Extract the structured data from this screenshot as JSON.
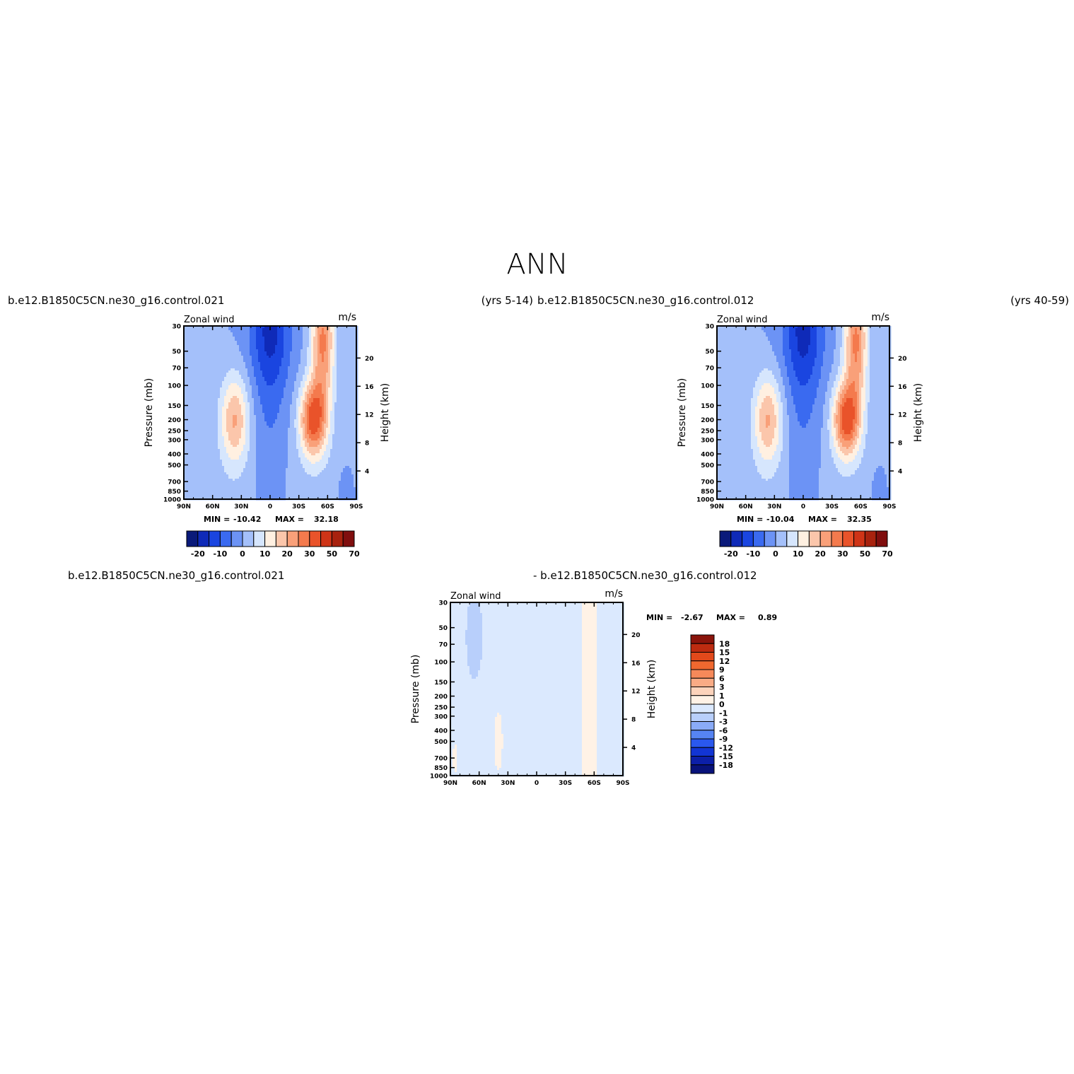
{
  "page": {
    "title": "ANN",
    "top_left_case": "b.e12.B1850C5CN.ne30_g16.control.021",
    "top_left_years": "(yrs 5-14)",
    "top_right_case": "b.e12.B1850C5CN.ne30_g16.control.012",
    "top_right_years": "(yrs 40-59)",
    "diff_case_a": "b.e12.B1850C5CN.ne30_g16.control.021",
    "diff_case_b": "- b.e12.B1850C5CN.ne30_g16.control.012"
  },
  "colors": {
    "model_scale": [
      "#0a1a7a",
      "#0f2ab8",
      "#1a45e0",
      "#3a6af0",
      "#6c93f5",
      "#a4c0fa",
      "#d6e6fd",
      "#fff0e1",
      "#fbc6ab",
      "#f9a079",
      "#f47a4d",
      "#e9532a",
      "#cf3417",
      "#a8220e",
      "#800e0e"
    ],
    "diff_scale": [
      "#08127a",
      "#0c1fa8",
      "#1235d4",
      "#2a58ee",
      "#5684f3",
      "#8aabf7",
      "#b8cffb",
      "#dbe9fe",
      "#fff2e6",
      "#fcd3bb",
      "#f9ab85",
      "#f6895a",
      "#f0682f",
      "#e2491b",
      "#bd2b10",
      "#8a140b"
    ]
  },
  "chart_data": [
    {
      "type": "heatmap",
      "panel": "top-left",
      "variable": "Zonal wind",
      "units": "m/s",
      "ylabel": "Pressure (mb)",
      "ylabel_right": "Height (km)",
      "x_ticks": [
        "90N",
        "60N",
        "30N",
        "0",
        "30S",
        "60S",
        "90S"
      ],
      "y_ticks": [
        "30",
        "50",
        "70",
        "100",
        "150",
        "200",
        "250",
        "300",
        "400",
        "500",
        "700",
        "850",
        "1000"
      ],
      "height_ticks": [
        "20",
        "16",
        "12",
        "8",
        "4"
      ],
      "min_label": "MIN =",
      "min_value": "-10.42",
      "max_label": "MAX =",
      "max_value": "32.18",
      "ylim_mb": [
        1000,
        30
      ],
      "xlim_deg": [
        90,
        -90
      ],
      "colorbar_labels": [
        "-20",
        "-10",
        "0",
        "10",
        "20",
        "30",
        "50",
        "70"
      ],
      "colorbar_orientation": "horizontal-below",
      "jets": {
        "nh_max_ms": 20,
        "nh_lat": 40,
        "nh_p": 200,
        "sh_max_ms": 32.18,
        "sh_lat": -45,
        "sh_p": 200
      }
    },
    {
      "type": "heatmap",
      "panel": "top-right",
      "variable": "Zonal wind",
      "units": "m/s",
      "ylabel": "Pressure (mb)",
      "ylabel_right": "Height (km)",
      "x_ticks": [
        "90N",
        "60N",
        "30N",
        "0",
        "30S",
        "60S",
        "90S"
      ],
      "y_ticks": [
        "30",
        "50",
        "70",
        "100",
        "150",
        "200",
        "250",
        "300",
        "400",
        "500",
        "700",
        "850",
        "1000"
      ],
      "height_ticks": [
        "20",
        "16",
        "12",
        "8",
        "4"
      ],
      "min_label": "MIN =",
      "min_value": "-10.04",
      "max_label": "MAX =",
      "max_value": "32.35",
      "ylim_mb": [
        1000,
        30
      ],
      "xlim_deg": [
        90,
        -90
      ],
      "colorbar_labels": [
        "-20",
        "-10",
        "0",
        "10",
        "20",
        "30",
        "50",
        "70"
      ],
      "colorbar_orientation": "horizontal-below",
      "jets": {
        "nh_max_ms": 20,
        "nh_lat": 40,
        "nh_p": 200,
        "sh_max_ms": 32.35,
        "sh_lat": -45,
        "sh_p": 200
      }
    },
    {
      "type": "heatmap",
      "panel": "bottom-difference",
      "variable": "Zonal wind",
      "units": "m/s",
      "ylabel": "Pressure (mb)",
      "ylabel_right": "Height (km)",
      "x_ticks": [
        "90N",
        "60N",
        "30N",
        "0",
        "30S",
        "60S",
        "90S"
      ],
      "y_ticks": [
        "30",
        "50",
        "70",
        "100",
        "150",
        "200",
        "250",
        "300",
        "400",
        "500",
        "700",
        "850",
        "1000"
      ],
      "height_ticks": [
        "20",
        "16",
        "12",
        "8",
        "4"
      ],
      "min_label": "MIN =",
      "min_value": "-2.67",
      "max_label": "MAX =",
      "max_value": "0.89",
      "ylim_mb": [
        1000,
        30
      ],
      "xlim_deg": [
        90,
        -90
      ],
      "colorbar_labels": [
        "18",
        "15",
        "12",
        "9",
        "6",
        "3",
        "1",
        "0",
        "-1",
        "-3",
        "-6",
        "-9",
        "-12",
        "-15",
        "-18"
      ],
      "colorbar_orientation": "vertical-right"
    }
  ]
}
